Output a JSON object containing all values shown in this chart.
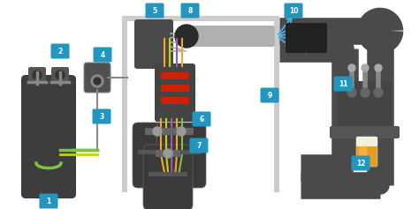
{
  "bg_color": "#ffffff",
  "dark_gray": "#3d3d3d",
  "pipe_color": "#4a4a4a",
  "pipe_lw": 10,
  "frame_color": "#cccccc",
  "blue_label": "#2196c0",
  "green_tube": "#7dc242",
  "yellow_tube": "#c8d400",
  "orange_tube": "#f5a623",
  "purple_tube": "#9b59b6",
  "blue_cool": "#4db8e8",
  "keg_color": "#3a3a3a",
  "bar_color": "#555555",
  "regulator_color": "#555555"
}
